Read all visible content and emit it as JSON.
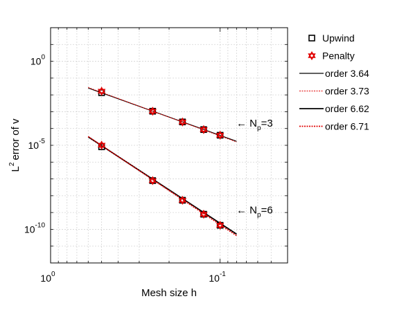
{
  "chart_data": {
    "type": "line",
    "title": "",
    "xlabel": "Mesh size h",
    "ylabel": "error of v",
    "ylabel_prefix": "L",
    "ylabel_sup": "2",
    "x_scale": "log",
    "y_scale": "log",
    "x_reversed": true,
    "xlim": [
      1,
      0.04
    ],
    "ylim": [
      1e-12,
      100.0
    ],
    "grid": true,
    "x_ticks": [
      {
        "value": 1,
        "base": "10",
        "exp": "0"
      },
      {
        "value": 0.1,
        "base": "10",
        "exp": "-1"
      }
    ],
    "y_ticks": [
      {
        "value": 1,
        "base": "10",
        "exp": "0"
      },
      {
        "value": 1e-05,
        "base": "10",
        "exp": "-5"
      },
      {
        "value": 1e-10,
        "base": "10",
        "exp": "-10"
      }
    ],
    "legend_position": "right",
    "legend": [
      {
        "label": "Upwind",
        "marker": "square",
        "color": "#000000"
      },
      {
        "label": "Penalty",
        "marker": "hexagram",
        "color": "#e00000"
      },
      {
        "label": "order 3.64",
        "line": "solid",
        "color": "#000000"
      },
      {
        "label": "order 3.73",
        "line": "dotted",
        "color": "#e00000"
      },
      {
        "label": "order 6.62",
        "line": "solid-thick",
        "color": "#000000"
      },
      {
        "label": "order 6.71",
        "line": "dotted-thick",
        "color": "#e00000"
      }
    ],
    "annotations": [
      {
        "arrow": "← N",
        "sub": "p",
        "rest": "=3"
      },
      {
        "arrow": "← N",
        "sub": "p",
        "rest": "=6"
      }
    ],
    "series": [
      {
        "name": "Upwind",
        "group": "Np=3",
        "kind": "markers",
        "marker": "square",
        "color": "#000000",
        "x": [
          0.5,
          0.25,
          0.1667,
          0.125,
          0.1
        ],
        "y": [
          0.0135,
          0.00107,
          0.000246,
          8.63e-05,
          3.98e-05
        ]
      },
      {
        "name": "Penalty",
        "group": "Np=3",
        "kind": "markers",
        "marker": "hexagram",
        "color": "#e00000",
        "x": [
          0.5,
          0.25,
          0.1667,
          0.125,
          0.1
        ],
        "y": [
          0.0166,
          0.00107,
          0.000246,
          8.63e-05,
          3.98e-05
        ]
      },
      {
        "name": "order 3.64",
        "group": "Np=3",
        "kind": "line",
        "style": "solid",
        "color": "#000000",
        "x": [
          0.6,
          0.08
        ],
        "y": [
          0.0257,
          1.74e-05
        ]
      },
      {
        "name": "order 3.73",
        "group": "Np=3",
        "kind": "line",
        "style": "dotted",
        "color": "#e00000",
        "x": [
          0.6,
          0.08
        ],
        "y": [
          0.0275,
          1.59e-05
        ]
      },
      {
        "name": "Upwind",
        "group": "Np=6",
        "kind": "markers",
        "marker": "square",
        "color": "#000000",
        "x": [
          0.5,
          0.25,
          0.1667,
          0.125,
          0.1
        ],
        "y": [
          8.13e-06,
          7.94e-08,
          5.37e-09,
          7.94e-10,
          1.74e-10
        ]
      },
      {
        "name": "Penalty",
        "group": "Np=6",
        "kind": "markers",
        "marker": "hexagram",
        "color": "#e00000",
        "x": [
          0.5,
          0.25,
          0.1667,
          0.125,
          0.1
        ],
        "y": [
          1.02e-05,
          7.94e-08,
          5.37e-09,
          7.94e-10,
          1.74e-10
        ]
      },
      {
        "name": "order 6.62",
        "group": "Np=6",
        "kind": "line",
        "style": "solid-thick",
        "color": "#000000",
        "x": [
          0.6,
          0.08
        ],
        "y": [
          3.16e-05,
          5.25e-11
        ]
      },
      {
        "name": "order 6.71",
        "group": "Np=6",
        "kind": "line",
        "style": "dotted-thick",
        "color": "#e00000",
        "x": [
          0.6,
          0.08
        ],
        "y": [
          3.31e-05,
          4.27e-11
        ]
      }
    ]
  }
}
